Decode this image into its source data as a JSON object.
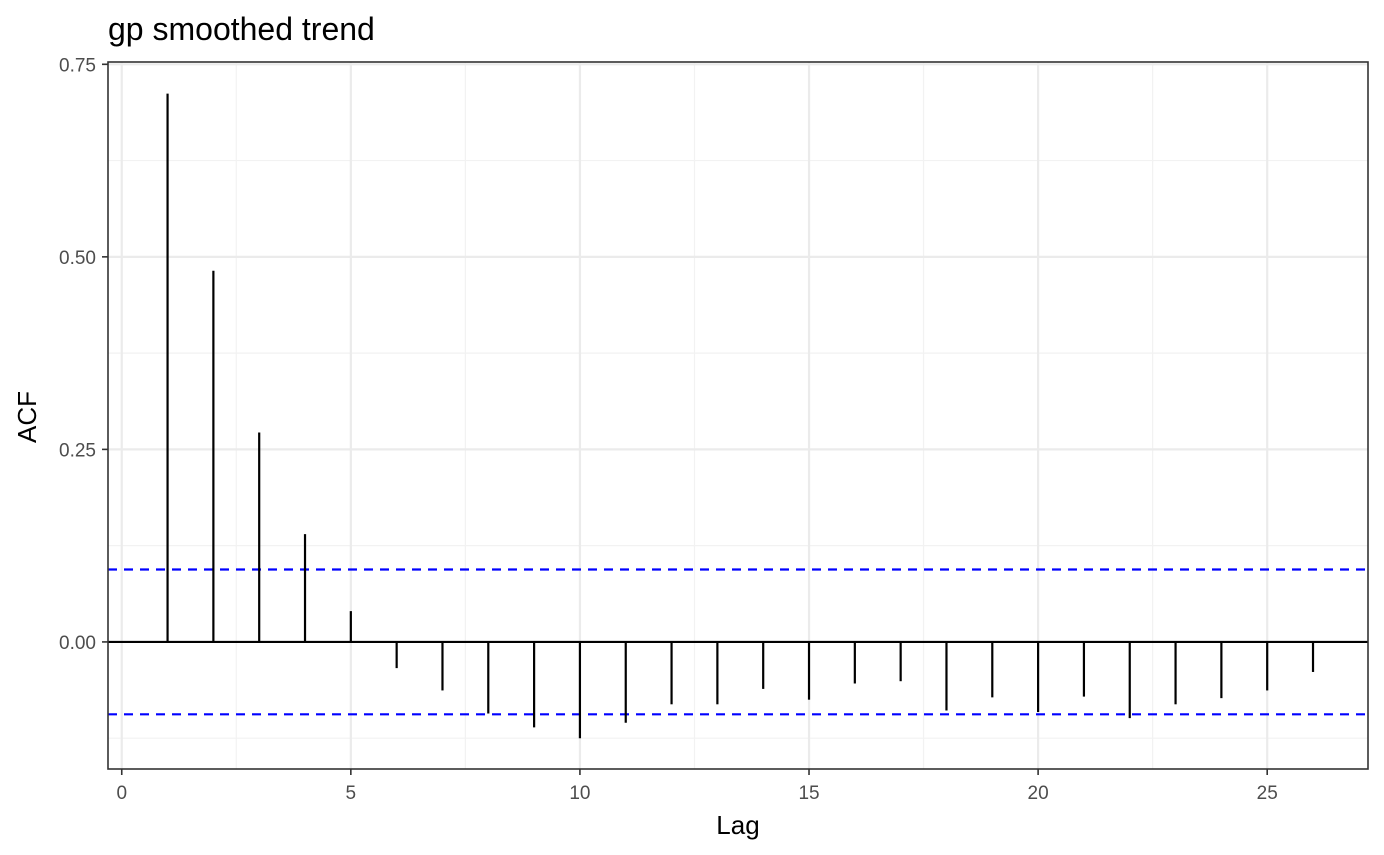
{
  "chart_data": {
    "type": "bar",
    "title": "gp smoothed trend",
    "xlabel": "Lag",
    "ylabel": "ACF",
    "x": [
      1,
      2,
      3,
      4,
      5,
      6,
      7,
      8,
      9,
      10,
      11,
      12,
      13,
      14,
      15,
      16,
      17,
      18,
      19,
      20,
      21,
      22,
      23,
      24,
      25,
      26
    ],
    "values": [
      0.712,
      0.482,
      0.272,
      0.14,
      0.04,
      -0.034,
      -0.063,
      -0.093,
      -0.111,
      -0.125,
      -0.105,
      -0.081,
      -0.081,
      -0.061,
      -0.075,
      -0.054,
      -0.051,
      -0.089,
      -0.072,
      -0.091,
      -0.071,
      -0.099,
      -0.081,
      -0.073,
      -0.063,
      -0.039
    ],
    "confidence_bounds": [
      0.094,
      -0.094
    ],
    "xlim": [
      -0.3,
      27.2
    ],
    "ylim": [
      -0.165,
      0.753
    ],
    "x_ticks": [
      0,
      5,
      10,
      15,
      20,
      25
    ],
    "y_ticks": [
      0,
      0.25,
      0.5,
      0.75
    ],
    "x_tick_labels": [
      "0",
      "5",
      "10",
      "15",
      "20",
      "25"
    ],
    "y_tick_labels": [
      "0.00",
      "0.25",
      "0.50",
      "0.75"
    ],
    "grid": true,
    "colors": {
      "bars": "#000000",
      "bounds": "#0000ff",
      "grid_major": "#ebebeb",
      "grid_minor": "#f2f2f2",
      "panel_border": "#333333"
    }
  }
}
